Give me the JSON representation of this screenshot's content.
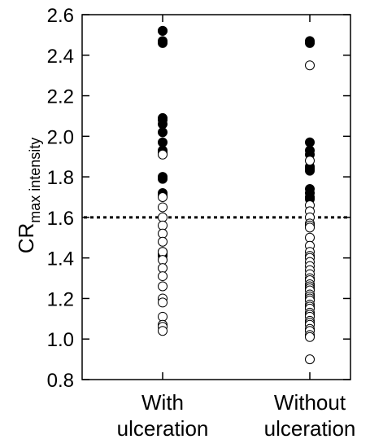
{
  "chart_data": {
    "type": "scatter",
    "ylabel_main": "CR",
    "ylabel_sub": "max  intensity",
    "ylim": [
      0.8,
      2.6
    ],
    "yticks": [
      "0.8",
      "1.0",
      "1.2",
      "1.4",
      "1.6",
      "1.8",
      "2.0",
      "2.2",
      "2.4",
      "2.6"
    ],
    "categories": [
      {
        "line1": "With",
        "line2": "ulceration"
      },
      {
        "line1": "Without",
        "line2": "ulceration"
      }
    ],
    "threshold": 1.6,
    "grid": false,
    "series": [
      {
        "fill": "#000000",
        "category_index": 0,
        "values": [
          2.52,
          2.52,
          2.47,
          2.46,
          2.09,
          2.08,
          2.06,
          2.02,
          1.97,
          1.93,
          1.92,
          1.8,
          1.79,
          1.72,
          1.71,
          1.43,
          1.42,
          1.41
        ]
      },
      {
        "fill": "#ffffff",
        "category_index": 0,
        "values": [
          1.91,
          1.7,
          1.65,
          1.6,
          1.56,
          1.52,
          1.48,
          1.43,
          1.39,
          1.35,
          1.31,
          1.26,
          1.2,
          1.18,
          1.11,
          1.07,
          1.06,
          1.04
        ]
      },
      {
        "fill": "#000000",
        "category_index": 1,
        "values": [
          2.47,
          2.46,
          1.97,
          1.93,
          1.91,
          1.85,
          1.84,
          1.83,
          1.74,
          1.72,
          1.7,
          1.69
        ]
      },
      {
        "fill": "#ffffff",
        "category_index": 1,
        "values": [
          2.35,
          1.88,
          1.66,
          1.63,
          1.6,
          1.57,
          1.56,
          1.55,
          1.5,
          1.46,
          1.43,
          1.41,
          1.4,
          1.38,
          1.36,
          1.34,
          1.32,
          1.3,
          1.29,
          1.27,
          1.26,
          1.25,
          1.24,
          1.22,
          1.21,
          1.2,
          1.19,
          1.17,
          1.16,
          1.15,
          1.13,
          1.12,
          1.11,
          1.09,
          1.08,
          1.07,
          1.05,
          1.04,
          1.02,
          1.01,
          0.9
        ]
      }
    ],
    "colors": {
      "axis": "#000000",
      "filled": "#000000",
      "open": "#ffffff"
    }
  }
}
